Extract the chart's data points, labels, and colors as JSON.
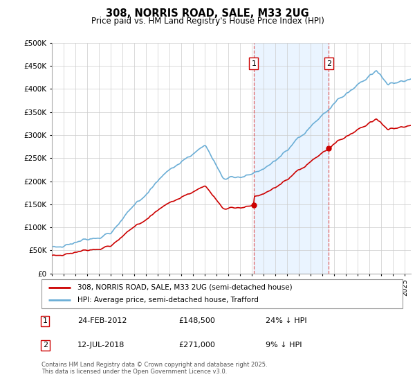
{
  "title": "308, NORRIS ROAD, SALE, M33 2UG",
  "subtitle": "Price paid vs. HM Land Registry's House Price Index (HPI)",
  "legend_line1": "308, NORRIS ROAD, SALE, M33 2UG (semi-detached house)",
  "legend_line2": "HPI: Average price, semi-detached house, Trafford",
  "footnote": "Contains HM Land Registry data © Crown copyright and database right 2025.\nThis data is licensed under the Open Government Licence v3.0.",
  "sale1_date": "24-FEB-2012",
  "sale1_price": 148500,
  "sale1_label": "24% ↓ HPI",
  "sale2_date": "12-JUL-2018",
  "sale2_price": 271000,
  "sale2_label": "9% ↓ HPI",
  "hpi_color": "#6baed6",
  "price_color": "#cc0000",
  "marker_color": "#cc0000",
  "vline_color": "#e06060",
  "highlight_color": "#ddeeff",
  "ylim": [
    0,
    500000
  ],
  "yticks": [
    0,
    50000,
    100000,
    150000,
    200000,
    250000,
    300000,
    350000,
    400000,
    450000,
    500000
  ],
  "xlim_start": 1995.0,
  "xlim_end": 2025.5
}
